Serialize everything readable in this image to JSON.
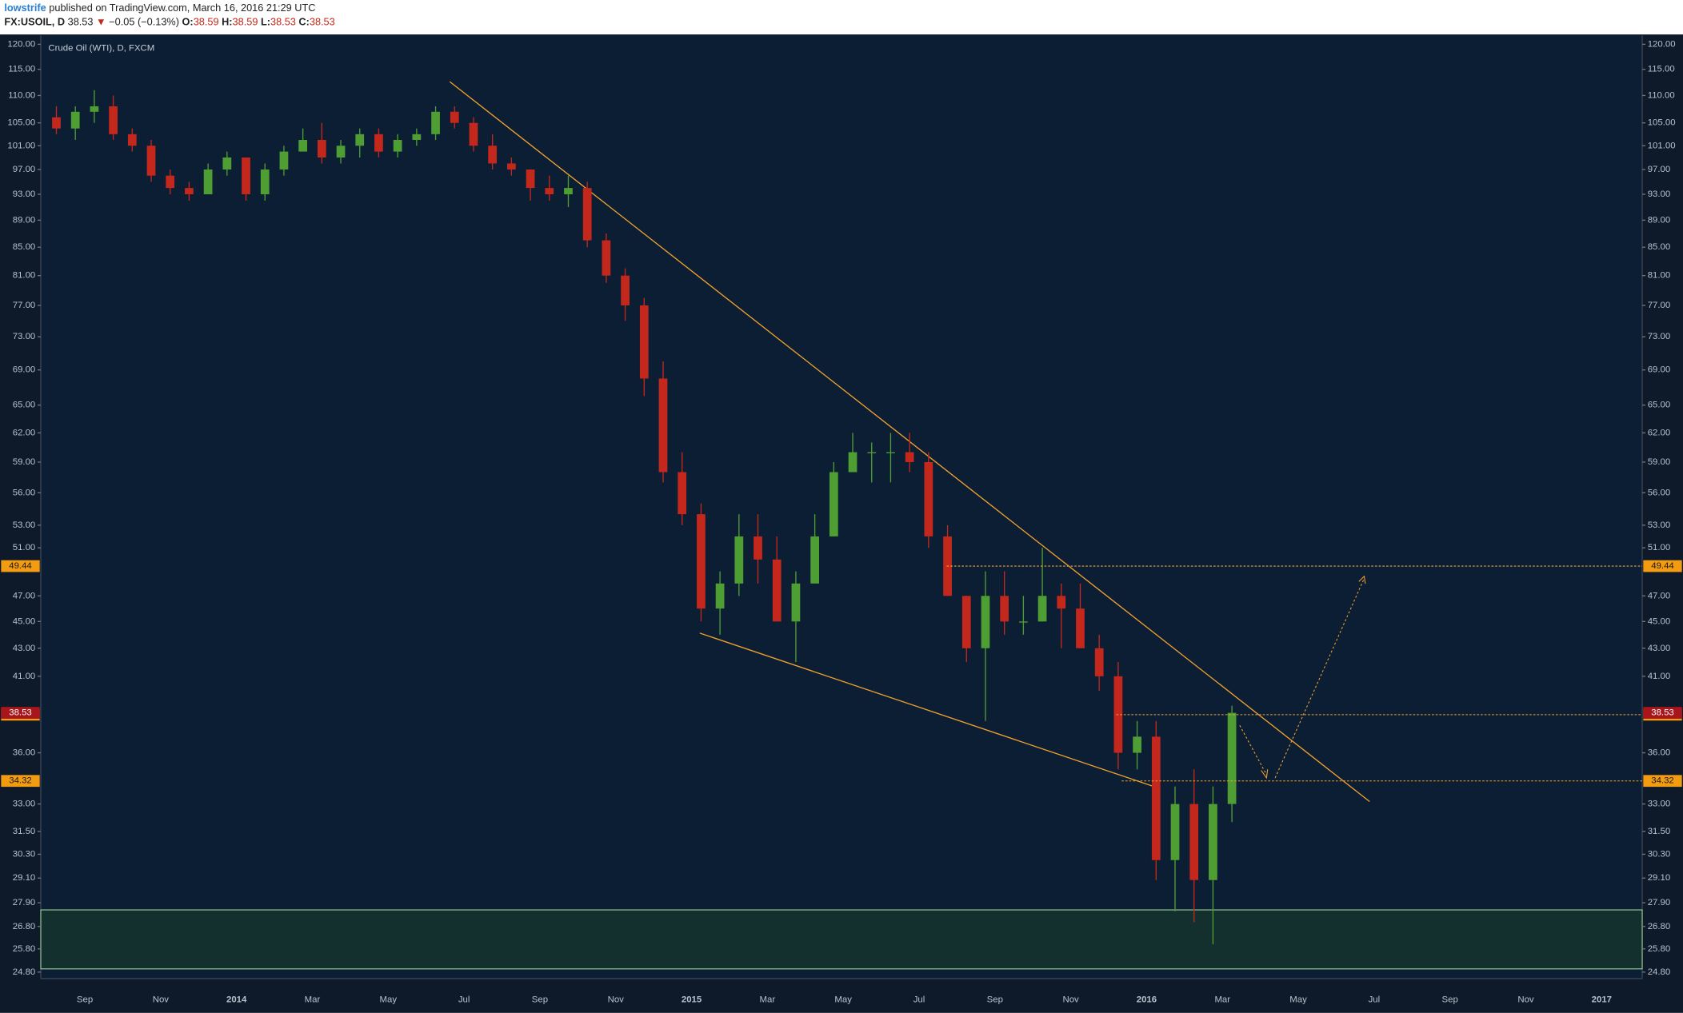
{
  "header": {
    "author": "lowstrife",
    "published": "published on TradingView.com, March 16, 2016 21:29 UTC",
    "symbol": "FX:USOIL, D",
    "last": "38.53",
    "arrow": "▼",
    "change": "−0.05 (−0.13%)",
    "o_label": "O:",
    "o": "38.59",
    "h_label": "H:",
    "h": "38.59",
    "l_label": "L:",
    "l": "38.53",
    "c_label": "C:",
    "c": "38.53"
  },
  "chart_data": {
    "type": "candlestick",
    "title": "Crude Oil (WTI), D, FXCM",
    "up_color": "#4f9e33",
    "down_color": "#c4281c",
    "log_scale": true,
    "x_labels": [
      "Sep",
      "Nov",
      "2014",
      "Mar",
      "May",
      "Jul",
      "Sep",
      "Nov",
      "2015",
      "Mar",
      "May",
      "Jul",
      "Sep",
      "Nov",
      "2016",
      "Mar",
      "May",
      "Jul",
      "Sep",
      "Nov",
      "2017"
    ],
    "open": [
      106,
      104,
      107,
      108,
      103,
      101,
      96,
      94,
      93,
      97,
      99,
      93,
      97,
      100,
      102,
      99,
      101,
      103,
      100,
      102,
      103,
      107,
      105,
      101,
      98,
      97,
      94,
      93,
      94,
      86,
      81,
      77,
      68,
      58,
      54,
      46,
      48,
      52,
      50,
      45,
      48,
      52,
      58,
      60,
      60,
      60,
      59,
      52,
      47,
      43,
      47,
      45,
      45,
      47,
      46,
      43,
      41,
      36,
      37,
      30,
      33,
      29,
      33
    ],
    "high": [
      108,
      108,
      111,
      110,
      104,
      102,
      97,
      95,
      98,
      100,
      99,
      98,
      101,
      104,
      105,
      102,
      104,
      104,
      103,
      104,
      108,
      108,
      106,
      103,
      99,
      97,
      96,
      96,
      95,
      87,
      82,
      78,
      70,
      60,
      55,
      49,
      54,
      54,
      52,
      49,
      54,
      59,
      62,
      61,
      62,
      62,
      60,
      53,
      47,
      49,
      49,
      47,
      51,
      48,
      48,
      44,
      42,
      38,
      38,
      34,
      35,
      34,
      39
    ],
    "low": [
      103,
      102,
      105,
      102,
      100,
      95,
      93,
      92,
      93,
      96,
      92,
      92,
      96,
      100,
      98,
      98,
      99,
      99,
      99,
      101,
      102,
      104,
      100,
      97,
      96,
      92,
      92,
      91,
      85,
      80,
      75,
      66,
      57,
      53,
      45,
      44,
      47,
      48,
      45,
      42,
      48,
      52,
      58,
      57,
      57,
      58,
      51,
      47,
      42,
      38,
      44,
      44,
      45,
      43,
      43,
      40,
      35,
      35,
      29,
      27.5,
      27,
      26,
      32
    ],
    "close": [
      104,
      107,
      108,
      103,
      101,
      96,
      94,
      93,
      97,
      99,
      93,
      97,
      100,
      102,
      99,
      101,
      103,
      100,
      102,
      103,
      107,
      105,
      101,
      98,
      97,
      94,
      93,
      94,
      86,
      81,
      77,
      68,
      58,
      54,
      46,
      48,
      52,
      50,
      45,
      48,
      52,
      58,
      60,
      60,
      60,
      59,
      52,
      47,
      43,
      47,
      45,
      45,
      47,
      46,
      43,
      41,
      36,
      37,
      30,
      33,
      29,
      33,
      38.53
    ],
    "ylim": [
      24.53,
      121.8
    ],
    "yticks": [
      {
        "value": 120,
        "label": "120.00"
      },
      {
        "value": 115,
        "label": "115.00"
      },
      {
        "value": 110,
        "label": "110.00"
      },
      {
        "value": 105,
        "label": "105.00"
      },
      {
        "value": 101,
        "label": "101.00"
      },
      {
        "value": 97,
        "label": "97.00"
      },
      {
        "value": 93,
        "label": "93.00"
      },
      {
        "value": 89,
        "label": "89.00"
      },
      {
        "value": 85,
        "label": "85.00"
      },
      {
        "value": 81,
        "label": "81.00"
      },
      {
        "value": 77,
        "label": "77.00"
      },
      {
        "value": 73,
        "label": "73.00"
      },
      {
        "value": 69,
        "label": "69.00"
      },
      {
        "value": 65,
        "label": "65.00"
      },
      {
        "value": 62,
        "label": "62.00"
      },
      {
        "value": 59,
        "label": "59.00"
      },
      {
        "value": 56,
        "label": "56.00"
      },
      {
        "value": 53,
        "label": "53.00"
      },
      {
        "value": 51,
        "label": "51.00"
      },
      {
        "value": 47,
        "label": "47.00"
      },
      {
        "value": 45,
        "label": "45.00"
      },
      {
        "value": 43,
        "label": "43.00"
      },
      {
        "value": 41,
        "label": "41.00"
      },
      {
        "value": 36,
        "label": "36.00"
      },
      {
        "value": 33,
        "label": "33.00"
      },
      {
        "value": 31.5,
        "label": "31.50"
      },
      {
        "value": 30.3,
        "label": "30.30"
      },
      {
        "value": 29.1,
        "label": "29.10"
      },
      {
        "value": 27.9,
        "label": "27.90"
      },
      {
        "value": 26.8,
        "label": "26.80"
      },
      {
        "value": 25.8,
        "label": "25.80"
      },
      {
        "value": 24.8,
        "label": "24.80"
      }
    ],
    "levels": [
      49.44,
      38.41,
      34.32
    ],
    "last_price": 38.53
  }
}
